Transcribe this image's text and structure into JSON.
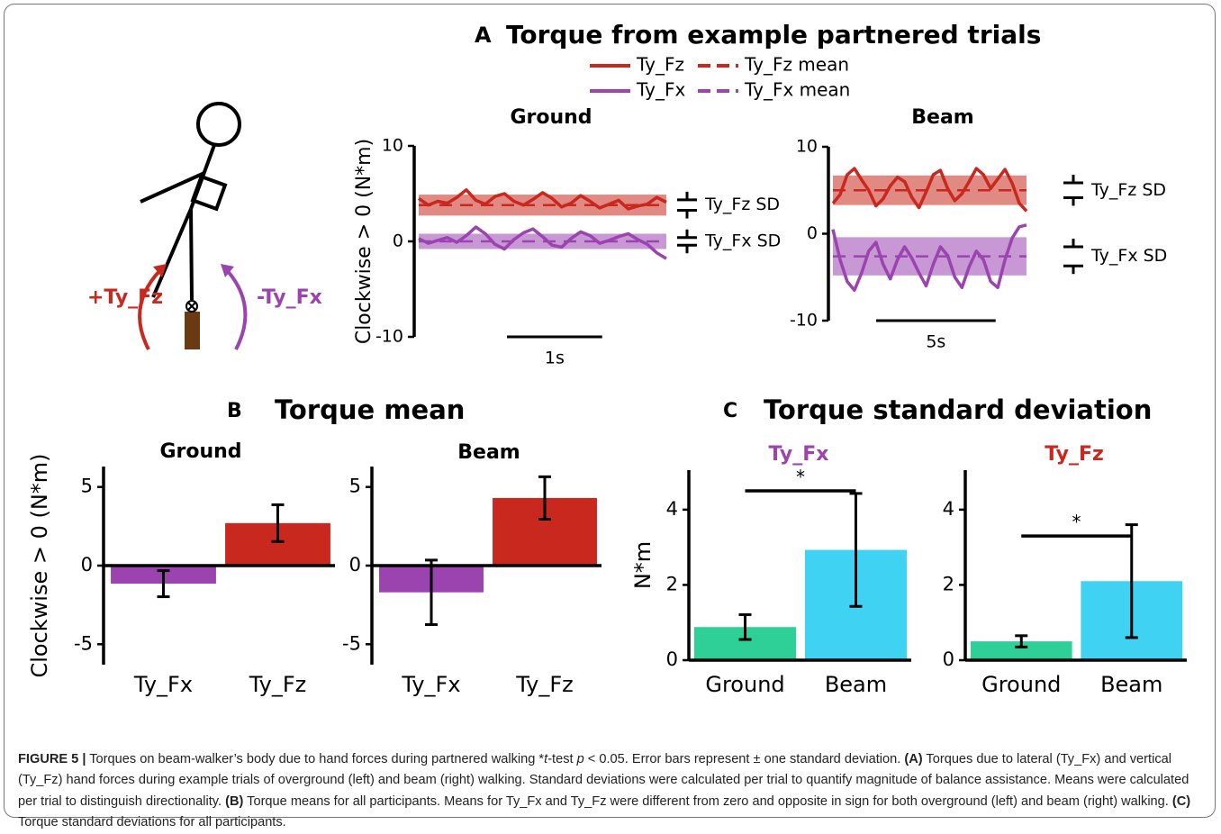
{
  "panels": {
    "A": {
      "label": "A",
      "title": "Torque from example partnered trials",
      "legend": [
        {
          "name": "Ty_Fz",
          "color": "#c8281e",
          "dashed": false
        },
        {
          "name": "Ty_Fz mean",
          "color": "#c8281e",
          "dashed": true
        },
        {
          "name": "Ty_Fx",
          "color": "#9b44b0",
          "dashed": false
        },
        {
          "name": "Ty_Fx mean",
          "color": "#9b44b0",
          "dashed": true
        }
      ]
    },
    "B": {
      "label": "B",
      "title": "Torque mean"
    },
    "C": {
      "label": "C",
      "title": "Torque standard deviation"
    }
  },
  "diagram": {
    "label_fz": "+Ty_Fz",
    "label_fx": "-Ty_Fx"
  },
  "chart_data": [
    {
      "type": "line",
      "title": "Ground",
      "ylabel": "Clockwise > 0 (N*m)",
      "ylim": [
        -10,
        10
      ],
      "yticks": [
        -10,
        0,
        10
      ],
      "xlim": [
        0,
        2.6
      ],
      "x": [
        0,
        0.1,
        0.2,
        0.3,
        0.4,
        0.5,
        0.6,
        0.7,
        0.8,
        0.9,
        1.0,
        1.1,
        1.2,
        1.3,
        1.4,
        1.5,
        1.6,
        1.7,
        1.8,
        1.9,
        2.0,
        2.1,
        2.2,
        2.3,
        2.4,
        2.5,
        2.6
      ],
      "scale_bar": {
        "value": 1,
        "label": "1s"
      },
      "series": [
        {
          "color": "#c8281e",
          "mean": 3.8,
          "sd": 1.1,
          "sd_label": "Ty_Fz SD",
          "values": [
            4.5,
            3.8,
            4.2,
            4.0,
            4.6,
            5.4,
            4.3,
            3.9,
            4.7,
            5.0,
            4.2,
            3.8,
            4.4,
            5.1,
            4.5,
            3.6,
            4.0,
            4.8,
            4.2,
            3.5,
            3.9,
            4.3,
            3.4,
            3.7,
            3.9,
            4.6,
            4.1
          ]
        },
        {
          "color": "#9b44b0",
          "mean": 0,
          "sd": 0.8,
          "sd_label": "Ty_Fx SD",
          "values": [
            0.3,
            -0.2,
            0.1,
            0.4,
            -0.1,
            0.6,
            1.5,
            0.8,
            -0.3,
            -0.8,
            0.2,
            0.9,
            1.3,
            0.5,
            -0.4,
            -0.6,
            0.3,
            1.0,
            0.6,
            -0.2,
            0.1,
            0.5,
            0.8,
            0.2,
            -0.3,
            -1.2,
            -1.8
          ]
        }
      ]
    },
    {
      "type": "line",
      "title": "Beam",
      "ylim": [
        -10,
        10
      ],
      "yticks": [
        -10,
        0,
        10
      ],
      "xlim": [
        0,
        8.1
      ],
      "x": [
        0,
        0.3,
        0.6,
        0.9,
        1.2,
        1.5,
        1.8,
        2.1,
        2.4,
        2.7,
        3.0,
        3.3,
        3.6,
        3.9,
        4.2,
        4.5,
        4.8,
        5.1,
        5.4,
        5.7,
        6.0,
        6.3,
        6.6,
        6.9,
        7.2,
        7.5,
        7.8,
        8.1
      ],
      "scale_bar": {
        "value": 5,
        "label": "5s"
      },
      "series": [
        {
          "color": "#c8281e",
          "mean": 5,
          "sd": 1.7,
          "sd_label": "Ty_Fz SD",
          "values": [
            3.5,
            4.5,
            6.8,
            7.5,
            6.2,
            5.0,
            3.2,
            4.0,
            5.5,
            6.5,
            6.0,
            4.2,
            3.0,
            4.8,
            6.8,
            7.3,
            5.2,
            3.8,
            4.6,
            6.0,
            7.5,
            6.8,
            5.2,
            6.3,
            7.4,
            5.8,
            3.5,
            2.6
          ]
        },
        {
          "color": "#9b44b0",
          "mean": -2.6,
          "sd": 2.2,
          "sd_label": "Ty_Fx SD",
          "values": [
            0.5,
            -3,
            -5.5,
            -6.5,
            -4.5,
            -2,
            -1,
            -3.5,
            -5.2,
            -3,
            -1.5,
            -2.8,
            -4.5,
            -6,
            -3.5,
            -1.5,
            -2.5,
            -5,
            -6.2,
            -3.8,
            -2,
            -3,
            -5.5,
            -6.2,
            -3,
            -0.5,
            0.8,
            1.0
          ]
        }
      ]
    },
    {
      "type": "bar",
      "title": "Ground",
      "ylabel": "Clockwise > 0 (N*m)",
      "categories": [
        "Ty_Fx",
        "Ty_Fz"
      ],
      "values": [
        -1.15,
        2.7
      ],
      "errors": [
        0.83,
        1.17
      ],
      "colors": [
        "#9b44b0",
        "#c8281e"
      ],
      "ylim": [
        -6.3,
        6.3
      ],
      "yticks": [
        -5,
        0,
        5
      ]
    },
    {
      "type": "bar",
      "title": "Beam",
      "categories": [
        "Ty_Fx",
        "Ty_Fz"
      ],
      "values": [
        -1.7,
        4.3
      ],
      "errors": [
        2.05,
        1.35
      ],
      "colors": [
        "#9b44b0",
        "#c8281e"
      ],
      "ylim": [
        -6.3,
        6.3
      ],
      "yticks": [
        -5,
        0,
        5
      ]
    },
    {
      "type": "bar",
      "title": "Ty_Fx",
      "title_color": "#9b44b0",
      "ylabel": "N*m",
      "categories": [
        "Ground",
        "Beam"
      ],
      "values": [
        0.88,
        2.93
      ],
      "errors": [
        0.33,
        1.5
      ],
      "colors": [
        "#2fcf98",
        "#3fd2f2"
      ],
      "ylim": [
        0,
        5.05
      ],
      "yticks": [
        0,
        2,
        4
      ],
      "significance": {
        "label": "*",
        "value": 4.5
      }
    },
    {
      "type": "bar",
      "title": "Ty_Fz",
      "title_color": "#c8281e",
      "categories": [
        "Ground",
        "Beam"
      ],
      "values": [
        0.5,
        2.1
      ],
      "errors": [
        0.15,
        1.5
      ],
      "colors": [
        "#2fcf98",
        "#3fd2f2"
      ],
      "ylim": [
        0,
        5.05
      ],
      "yticks": [
        0,
        2,
        4
      ],
      "significance": {
        "label": "*",
        "value": 3.3
      }
    }
  ],
  "caption": {
    "runs": [
      {
        "text": "FIGURE 5 |",
        "style": "bold"
      },
      {
        "text": " Torques on beam-walker’s body due to hand forces during partnered walking *",
        "style": "normal"
      },
      {
        "text": "t",
        "style": "italic"
      },
      {
        "text": "-test ",
        "style": "normal"
      },
      {
        "text": "p",
        "style": "italic"
      },
      {
        "text": " < 0.05. Error bars represent ± one standard deviation. ",
        "style": "normal"
      },
      {
        "text": "(A)",
        "style": "bold"
      },
      {
        "text": " Torques due to lateral (Ty_Fx) and vertical (Ty_Fz) hand forces during example trials of overground (left) and beam (right) walking. Standard deviations were calculated per trial to quantify magnitude of balance assistance. Means were calculated per trial to distinguish directionality. ",
        "style": "normal"
      },
      {
        "text": "(B)",
        "style": "bold"
      },
      {
        "text": " Torque means for all participants. Means for Ty_Fx and Ty_Fz were different from zero and opposite in sign for both overground (left) and beam (right) walking. ",
        "style": "normal"
      },
      {
        "text": "(C)",
        "style": "bold"
      },
      {
        "text": " Torque standard deviations for all participants.",
        "style": "normal"
      }
    ]
  }
}
